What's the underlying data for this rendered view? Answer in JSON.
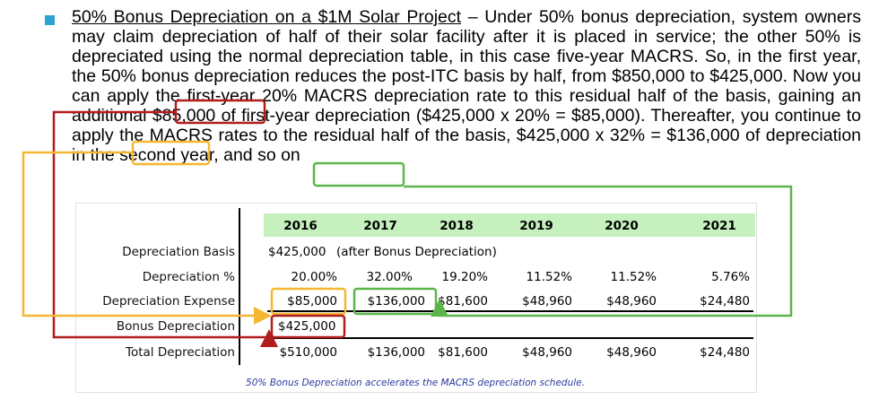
{
  "paragraph": {
    "title": "50% Bonus Depreciation on a $1M Solar Project",
    "intro": " – Under 50% bonus depreciation, system owners may claim depreciation of half of their solar facility after it is placed in service; the other 50% is depreciated using the normal depreciation table, in this case five-year MACRS. So, in the first year, the 50% bonus depreciation reduces the post-ITC basis by half, from $850,000 to ",
    "hl_bonus": "$425,000.",
    "mid1": " Now you can apply the first-year 20% MACRS depreciation rate to this residual half of the basis, gaining an additional $85,000 of first-year depreciation ($425,000 x 20% = ",
    "hl_first": "$85,000).",
    "mid2": " Thereafter, you continue to apply the MACRS rates to the residual half of the basis, $425,000 x 32% = ",
    "hl_second": "$136,000",
    "end": " of depreciation in the second year, and so on"
  },
  "table": {
    "years": [
      "2016",
      "2017",
      "2018",
      "2019",
      "2020",
      "2021"
    ],
    "row_labels": {
      "basis": "Depreciation Basis",
      "pct": "Depreciation %",
      "expense": "Depreciation Expense",
      "bonus": "Bonus Depreciation",
      "total": "Total Depreciation"
    },
    "basis_value": "$425,000",
    "basis_note": "(after Bonus Depreciation)",
    "pct_values": [
      "20.00%",
      "32.00%",
      "19.20%",
      "11.52%",
      "11.52%",
      "5.76%"
    ],
    "expense_values": [
      "$85,000",
      "$136,000",
      "$81,600",
      "$48,960",
      "$48,960",
      "$24,480"
    ],
    "bonus_value": "$425,000",
    "total_values": [
      "$510,000",
      "$136,000",
      "$81,600",
      "$48,960",
      "$48,960",
      "$24,480"
    ],
    "caption": "50% Bonus Depreciation accelerates the MACRS depreciation schedule."
  },
  "colors": {
    "bullet": "#2ea3cf",
    "red": "#b11c1c",
    "orange": "#f5b731",
    "green": "#5bb54a",
    "year_band": "#c6f0bd"
  }
}
